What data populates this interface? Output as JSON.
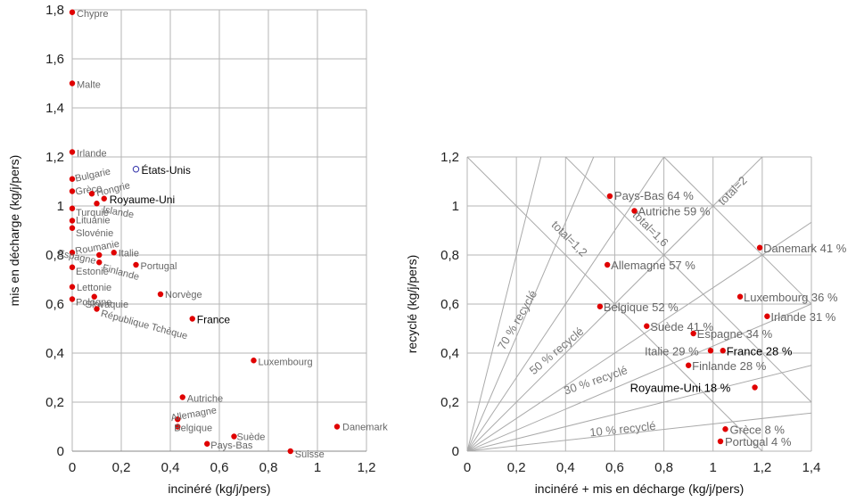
{
  "chart_data": [
    {
      "type": "scatter",
      "xlabel": "incinéré (kg/j/pers)",
      "ylabel": "mis en décharge (kg/j/pers)",
      "xlim": [
        0,
        1.2
      ],
      "ylim": [
        0,
        1.8
      ],
      "xticks": [
        "0",
        "0,2",
        "0,4",
        "0,6",
        "0,8",
        "1",
        "1,2"
      ],
      "yticks": [
        "0",
        "0,2",
        "0,4",
        "0,6",
        "0,8",
        "1",
        "1,2",
        "1,4",
        "1,6",
        "1,8"
      ],
      "grid": true,
      "points": [
        {
          "label": "Chypre",
          "x": 0.0,
          "y": 1.79
        },
        {
          "label": "Malte",
          "x": 0.0,
          "y": 1.5
        },
        {
          "label": "Irlande",
          "x": 0.0,
          "y": 1.22
        },
        {
          "label": "États-Unis",
          "x": 0.26,
          "y": 1.15,
          "hollow": true
        },
        {
          "label": "Bulgarie",
          "x": 0.0,
          "y": 1.11
        },
        {
          "label": "Grèce",
          "x": 0.0,
          "y": 1.06
        },
        {
          "label": "Hongrie",
          "x": 0.08,
          "y": 1.05
        },
        {
          "label": "Royaume-Uni",
          "x": 0.13,
          "y": 1.03
        },
        {
          "label": "Islande",
          "x": 0.1,
          "y": 1.01
        },
        {
          "label": "Turquie",
          "x": 0.0,
          "y": 0.99
        },
        {
          "label": "Lituanie",
          "x": 0.0,
          "y": 0.94
        },
        {
          "label": "Slovénie",
          "x": 0.0,
          "y": 0.91
        },
        {
          "label": "Roumanie",
          "x": 0.0,
          "y": 0.81
        },
        {
          "label": "Italie",
          "x": 0.17,
          "y": 0.81
        },
        {
          "label": "Espagne",
          "x": 0.11,
          "y": 0.8
        },
        {
          "label": "Finlande",
          "x": 0.11,
          "y": 0.77
        },
        {
          "label": "Portugal",
          "x": 0.26,
          "y": 0.76
        },
        {
          "label": "Estonie",
          "x": 0.0,
          "y": 0.75
        },
        {
          "label": "Lettonie",
          "x": 0.0,
          "y": 0.67
        },
        {
          "label": "Norvège",
          "x": 0.36,
          "y": 0.64
        },
        {
          "label": "Slovaquie",
          "x": 0.09,
          "y": 0.63
        },
        {
          "label": "Pologne",
          "x": 0.0,
          "y": 0.62
        },
        {
          "label": "République Tchèque",
          "x": 0.1,
          "y": 0.58
        },
        {
          "label": "France",
          "x": 0.49,
          "y": 0.54
        },
        {
          "label": "Luxembourg",
          "x": 0.74,
          "y": 0.37
        },
        {
          "label": "Autriche",
          "x": 0.45,
          "y": 0.22
        },
        {
          "label": "Allemagne",
          "x": 0.43,
          "y": 0.13
        },
        {
          "label": "Belgique",
          "x": 0.43,
          "y": 0.1
        },
        {
          "label": "Danemark",
          "x": 1.08,
          "y": 0.1
        },
        {
          "label": "Suède",
          "x": 0.66,
          "y": 0.06
        },
        {
          "label": "Pays-Bas",
          "x": 0.55,
          "y": 0.03
        },
        {
          "label": "Suisse",
          "x": 0.89,
          "y": 0.0
        }
      ]
    },
    {
      "type": "scatter",
      "xlabel": "incinéré + mis en décharge (kg/j/pers)",
      "ylabel": "recyclé (kg/j/pers)",
      "xlim": [
        0,
        1.4
      ],
      "ylim": [
        0,
        1.2
      ],
      "xticks": [
        "0",
        "0,2",
        "0,4",
        "0,6",
        "0,8",
        "1",
        "1,2",
        "1,4"
      ],
      "yticks": [
        "0",
        "0,2",
        "0,4",
        "0,6",
        "0,8",
        "1",
        "1,2"
      ],
      "grid": true,
      "guides": {
        "recycled_share_lines": [
          "10 % recyclé",
          "30 % recyclé",
          "50 % recyclé",
          "70 % recyclé"
        ],
        "total_lines": [
          "total=1,2",
          "total=1,6",
          "total=2"
        ]
      },
      "points": [
        {
          "label": "Pays-Bas 64 %",
          "x": 0.58,
          "y": 1.04
        },
        {
          "label": "Autriche 59 %",
          "x": 0.68,
          "y": 0.98
        },
        {
          "label": "Danemark 41 %",
          "x": 1.19,
          "y": 0.83
        },
        {
          "label": "Allemagne 57 %",
          "x": 0.57,
          "y": 0.76
        },
        {
          "label": "Luxembourg 36 %",
          "x": 1.11,
          "y": 0.63
        },
        {
          "label": "Belgique 52 %",
          "x": 0.54,
          "y": 0.59
        },
        {
          "label": "Irlande 31 %",
          "x": 1.22,
          "y": 0.55
        },
        {
          "label": "Suède 41 %",
          "x": 0.73,
          "y": 0.51
        },
        {
          "label": "Espagne 34 %",
          "x": 0.92,
          "y": 0.48
        },
        {
          "label": "Italie 29 %",
          "x": 0.99,
          "y": 0.41
        },
        {
          "label": "France 28 %",
          "x": 1.04,
          "y": 0.41
        },
        {
          "label": "Finlande 28 %",
          "x": 0.9,
          "y": 0.35
        },
        {
          "label": "Royaume-Uni 18 %",
          "x": 1.17,
          "y": 0.26
        },
        {
          "label": "Grèce 8 %",
          "x": 1.05,
          "y": 0.09
        },
        {
          "label": "Portugal 4 %",
          "x": 1.03,
          "y": 0.04
        }
      ]
    }
  ]
}
